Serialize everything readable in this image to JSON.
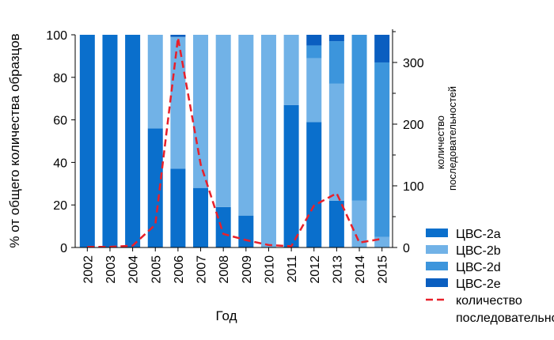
{
  "chart_data": {
    "type": "bar",
    "stacked": true,
    "secondary_type": "line",
    "categories": [
      "2002",
      "2003",
      "2004",
      "2005",
      "2006",
      "2007",
      "2008",
      "2009",
      "2010",
      "2011",
      "2012",
      "2013",
      "2014",
      "2015"
    ],
    "series": [
      {
        "name": "ЦВС-2a",
        "color": "#0a6fcc",
        "values": [
          100,
          100,
          100,
          56,
          37,
          28,
          19,
          15,
          0,
          67,
          59,
          22,
          0,
          0
        ]
      },
      {
        "name": "ЦВС-2b",
        "color": "#71b2e7",
        "values": [
          0,
          0,
          0,
          44,
          62,
          72,
          81,
          85,
          100,
          33,
          30,
          55,
          22,
          5
        ]
      },
      {
        "name": "ЦВС-2d",
        "color": "#3c95dc",
        "values": [
          0,
          0,
          0,
          0,
          0,
          0,
          0,
          0,
          0,
          0,
          6,
          20,
          78,
          82
        ]
      },
      {
        "name": "ЦВС-2e",
        "color": "#0a5ec0",
        "values": [
          0,
          0,
          0,
          0,
          1,
          0,
          0,
          0,
          0,
          0,
          5,
          3,
          0,
          13
        ]
      }
    ],
    "line_series": {
      "name": "количество последовательностей",
      "legend_label_line1": "количество",
      "legend_label_line2": "последовательностей",
      "color": "#e8202a",
      "style": "dashed",
      "values": [
        1,
        1,
        3,
        37,
        340,
        135,
        22,
        12,
        4,
        2,
        68,
        88,
        8,
        14
      ]
    },
    "xlabel": "Год",
    "ylabel": "% от общего количества образцов",
    "ylabel_right_line1": "количество",
    "ylabel_right_line2": "последовательностей",
    "ylim": [
      0,
      100
    ],
    "y_ticks": [
      0,
      20,
      40,
      60,
      80,
      100
    ],
    "ylim_right": [
      0,
      350
    ],
    "y_ticks_right": [
      0,
      100,
      200,
      300
    ],
    "grid": false,
    "legend_position": "bottom-right"
  }
}
